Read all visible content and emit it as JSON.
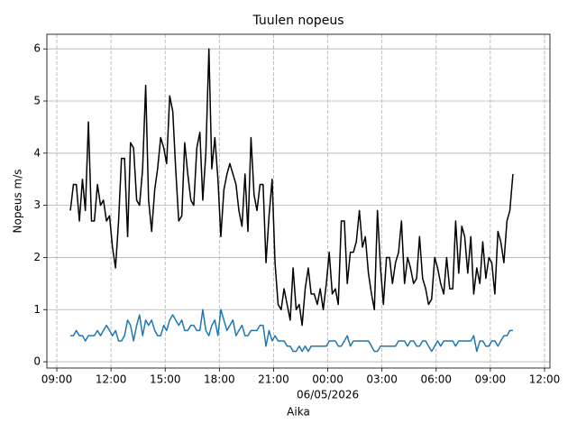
{
  "chart_data": {
    "type": "line",
    "title": "Tuulen nopeus",
    "xlabel": "Aika",
    "ylabel": "Nopeus m/s",
    "x_offset_label": "06/05/2026",
    "x": [
      9.75,
      9.92,
      10.08,
      10.25,
      10.42,
      10.58,
      10.75,
      10.92,
      11.08,
      11.25,
      11.42,
      11.58,
      11.75,
      11.92,
      12.08,
      12.25,
      12.42,
      12.58,
      12.75,
      12.92,
      13.08,
      13.25,
      13.42,
      13.58,
      13.75,
      13.92,
      14.08,
      14.25,
      14.42,
      14.58,
      14.75,
      14.92,
      15.08,
      15.25,
      15.42,
      15.58,
      15.75,
      15.92,
      16.08,
      16.25,
      16.42,
      16.58,
      16.75,
      16.92,
      17.08,
      17.25,
      17.42,
      17.58,
      17.75,
      17.92,
      18.08,
      18.25,
      18.42,
      18.58,
      18.75,
      18.92,
      19.08,
      19.25,
      19.42,
      19.58,
      19.75,
      19.92,
      20.08,
      20.25,
      20.42,
      20.58,
      20.75,
      20.92,
      21.08,
      21.25,
      21.42,
      21.58,
      21.75,
      21.92,
      22.08,
      22.25,
      22.42,
      22.58,
      22.75,
      22.92,
      23.08,
      23.25,
      23.42,
      23.58,
      23.75,
      23.92,
      24.08,
      24.25,
      24.42,
      24.58,
      24.75,
      24.92,
      25.08,
      25.25,
      25.42,
      25.58,
      25.75,
      25.92,
      26.08,
      26.25,
      26.42,
      26.58,
      26.75,
      26.92,
      27.08,
      27.25,
      27.42,
      27.58,
      27.75,
      27.92,
      28.08,
      28.25,
      28.42,
      28.58,
      28.75,
      28.92,
      29.08,
      29.25,
      29.42,
      29.58,
      29.75,
      29.92,
      30.08,
      30.25,
      30.42,
      30.58,
      30.75,
      30.92,
      31.08,
      31.25,
      31.42,
      31.58,
      31.75,
      31.92,
      32.08,
      32.25,
      32.42,
      32.58,
      32.75,
      32.92,
      33.08,
      33.25,
      33.42,
      33.58,
      33.75,
      33.92,
      34.08,
      34.25
    ],
    "series": [
      {
        "color": "#000000",
        "values": [
          2.9,
          3.4,
          3.4,
          2.7,
          3.5,
          2.9,
          4.6,
          2.7,
          2.7,
          3.4,
          3.0,
          3.1,
          2.7,
          2.8,
          2.2,
          1.8,
          2.7,
          3.9,
          3.9,
          2.4,
          4.2,
          4.1,
          3.1,
          3.0,
          3.7,
          5.3,
          3.1,
          2.5,
          3.3,
          3.7,
          4.3,
          4.1,
          3.8,
          5.1,
          4.8,
          3.7,
          2.7,
          2.8,
          4.2,
          3.6,
          3.1,
          3.0,
          4.1,
          4.4,
          3.1,
          4.0,
          6.0,
          3.7,
          4.3,
          3.5,
          2.4,
          3.3,
          3.6,
          3.8,
          3.6,
          3.4,
          2.9,
          2.6,
          3.6,
          2.5,
          4.3,
          3.2,
          2.9,
          3.4,
          3.4,
          1.9,
          2.8,
          3.5,
          1.9,
          1.1,
          1.0,
          1.4,
          1.1,
          0.8,
          1.8,
          1.0,
          1.1,
          0.7,
          1.4,
          1.8,
          1.3,
          1.3,
          1.1,
          1.4,
          1.0,
          1.5,
          2.1,
          1.3,
          1.4,
          1.1,
          2.7,
          2.7,
          1.5,
          2.1,
          2.1,
          2.3,
          2.9,
          2.2,
          2.4,
          1.7,
          1.3,
          1.0,
          2.9,
          1.8,
          1.1,
          2.0,
          2.0,
          1.5,
          1.9,
          2.1,
          2.7,
          1.5,
          2.0,
          1.8,
          1.5,
          1.6,
          2.4,
          1.6,
          1.4,
          1.1,
          1.2,
          2.0,
          1.8,
          1.5,
          1.3,
          2.0,
          1.4,
          1.4,
          2.7,
          1.7,
          2.6,
          2.4,
          1.7,
          2.4,
          1.3,
          1.8,
          1.5,
          2.3,
          1.6,
          2.0,
          1.9,
          1.3,
          2.5,
          2.3,
          1.9,
          2.7,
          2.9,
          3.6
        ]
      },
      {
        "color": "#1f77b4",
        "values": [
          0.5,
          0.5,
          0.6,
          0.5,
          0.5,
          0.4,
          0.5,
          0.5,
          0.5,
          0.6,
          0.5,
          0.6,
          0.7,
          0.6,
          0.5,
          0.6,
          0.4,
          0.4,
          0.5,
          0.8,
          0.7,
          0.4,
          0.7,
          0.9,
          0.5,
          0.8,
          0.7,
          0.8,
          0.6,
          0.5,
          0.5,
          0.7,
          0.6,
          0.8,
          0.9,
          0.8,
          0.7,
          0.8,
          0.6,
          0.6,
          0.7,
          0.7,
          0.6,
          0.6,
          1.0,
          0.6,
          0.5,
          0.7,
          0.8,
          0.5,
          1.0,
          0.8,
          0.6,
          0.7,
          0.8,
          0.5,
          0.6,
          0.7,
          0.5,
          0.5,
          0.6,
          0.6,
          0.6,
          0.7,
          0.7,
          0.3,
          0.6,
          0.4,
          0.5,
          0.4,
          0.4,
          0.4,
          0.3,
          0.3,
          0.2,
          0.2,
          0.3,
          0.2,
          0.3,
          0.2,
          0.3,
          0.3,
          0.3,
          0.3,
          0.3,
          0.3,
          0.4,
          0.4,
          0.4,
          0.3,
          0.3,
          0.4,
          0.5,
          0.3,
          0.4,
          0.4,
          0.4,
          0.4,
          0.4,
          0.4,
          0.3,
          0.2,
          0.2,
          0.3,
          0.3,
          0.3,
          0.3,
          0.3,
          0.3,
          0.4,
          0.4,
          0.4,
          0.3,
          0.4,
          0.4,
          0.3,
          0.3,
          0.4,
          0.4,
          0.3,
          0.2,
          0.3,
          0.4,
          0.3,
          0.4,
          0.4,
          0.4,
          0.4,
          0.3,
          0.4,
          0.4,
          0.4,
          0.4,
          0.4,
          0.5,
          0.2,
          0.4,
          0.4,
          0.3,
          0.3,
          0.4,
          0.4,
          0.3,
          0.4,
          0.5,
          0.5,
          0.6,
          0.6
        ]
      }
    ],
    "xlim": [
      8.45,
      36.3
    ],
    "xticks": [
      {
        "value": 9,
        "label": "09:00"
      },
      {
        "value": 12,
        "label": "12:00"
      },
      {
        "value": 15,
        "label": "15:00"
      },
      {
        "value": 18,
        "label": "18:00"
      },
      {
        "value": 21,
        "label": "21:00"
      },
      {
        "value": 24,
        "label": "00:00"
      },
      {
        "value": 27,
        "label": "03:00"
      },
      {
        "value": 30,
        "label": "06:00"
      },
      {
        "value": 33,
        "label": "09:00"
      },
      {
        "value": 36,
        "label": "12:00"
      }
    ],
    "ylim": [
      -0.12,
      6.28
    ],
    "yticks": [
      0,
      1,
      2,
      3,
      4,
      5,
      6
    ],
    "grid": true
  }
}
